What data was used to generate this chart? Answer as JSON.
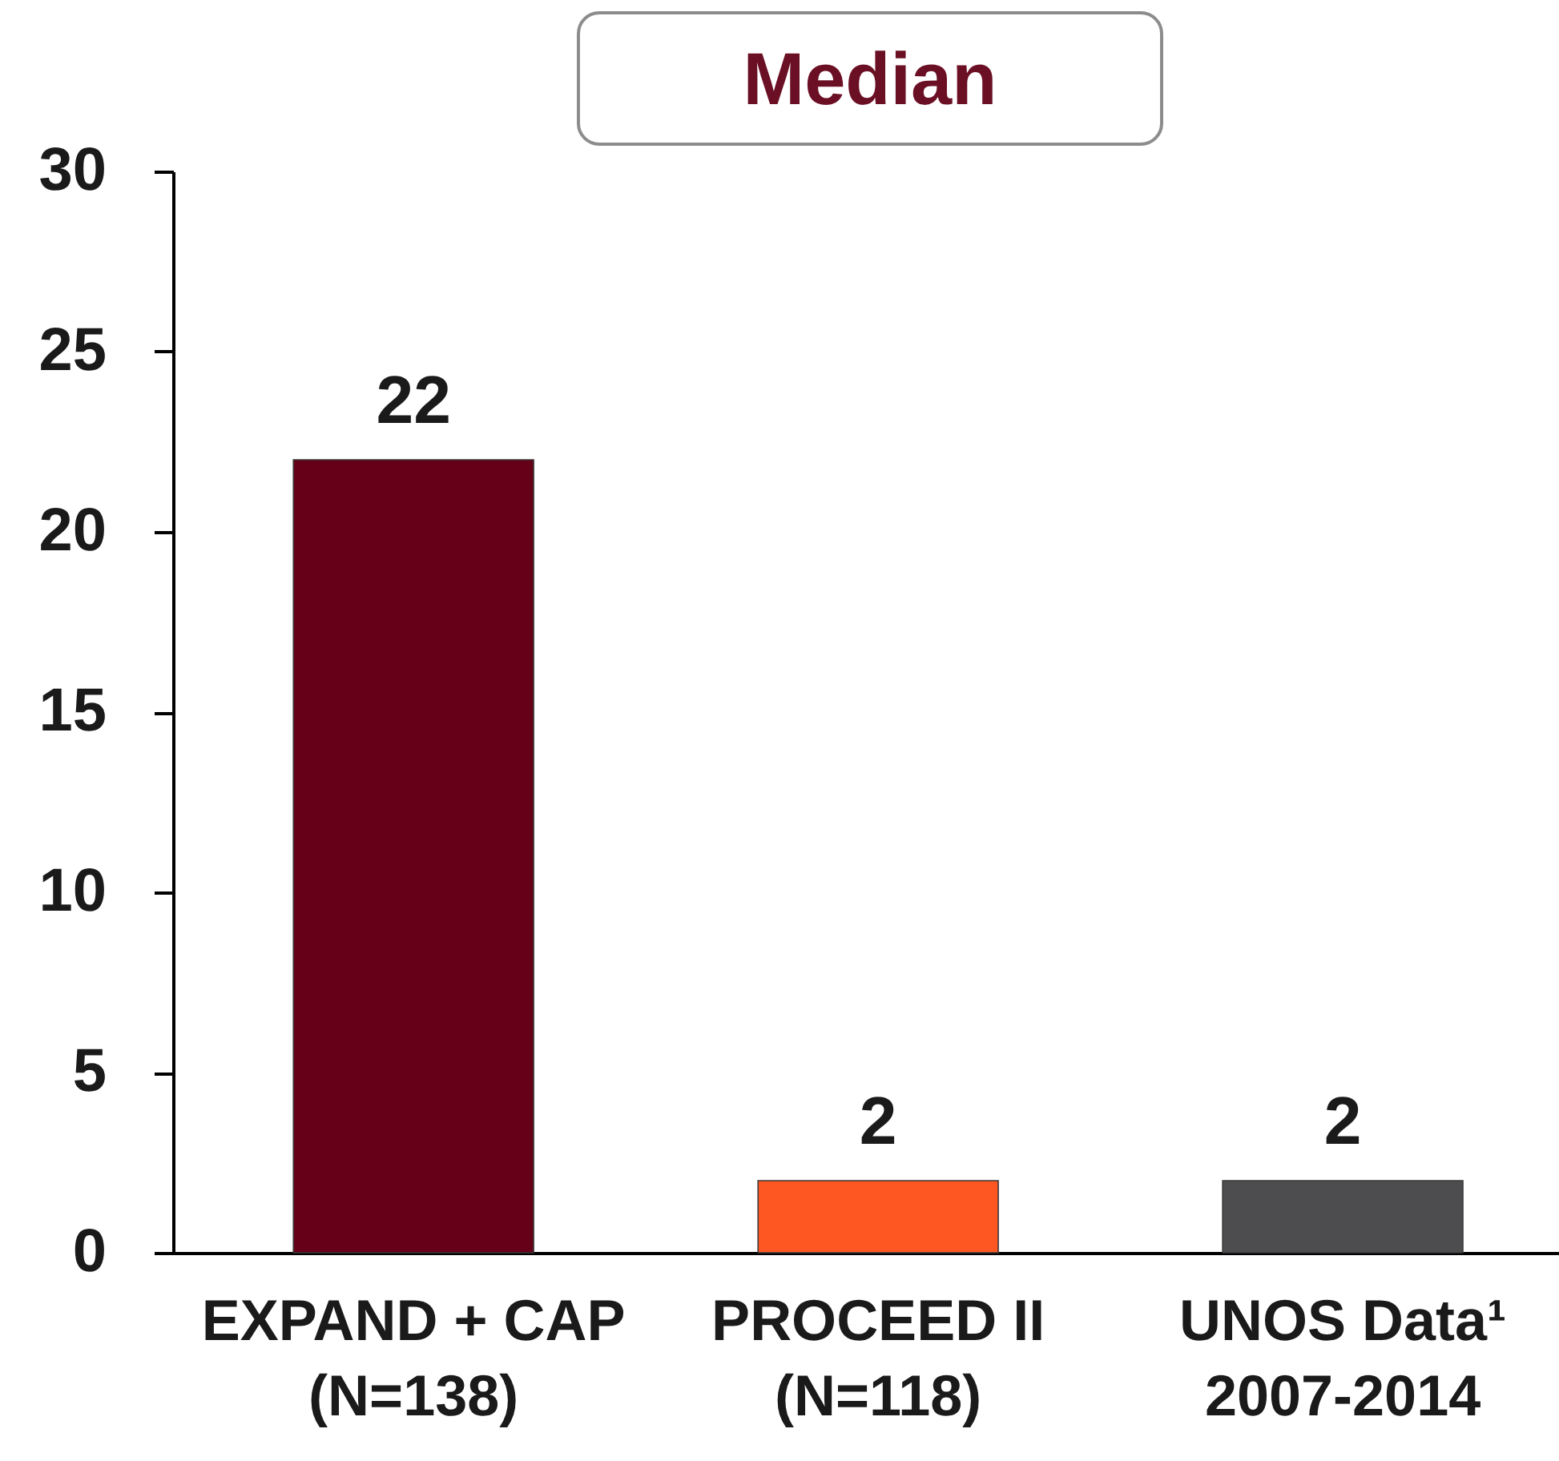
{
  "chart_data": {
    "type": "bar",
    "title": "Median",
    "categories": [
      "EXPAND + CAP\n(N=138)",
      "PROCEED II\n(N=118)",
      "UNOS Data¹\n2007-2014"
    ],
    "values": [
      22,
      2,
      2
    ],
    "colors": [
      "#660019",
      "#ff5722",
      "#4d4d4f"
    ],
    "ylim": [
      0,
      30
    ],
    "yticks": [
      0,
      5,
      10,
      15,
      20,
      25,
      30
    ],
    "data_labels": true
  }
}
